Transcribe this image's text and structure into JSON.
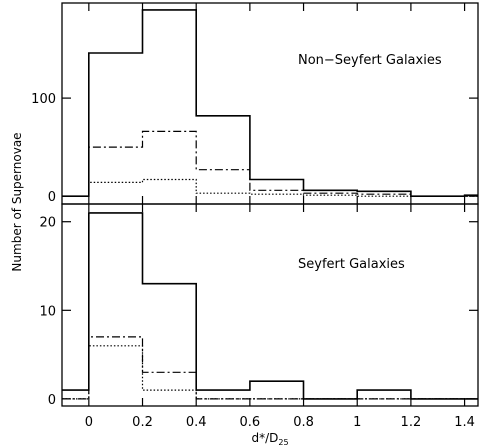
{
  "chart_data": [
    {
      "type": "step",
      "panel": "top",
      "annotation": "Non−Seyfert Galaxies",
      "ylabel": "Number of Supernovae",
      "xlabel": "d*/D25",
      "xlim": [
        -0.1,
        1.45
      ],
      "ylim": [
        -8,
        197
      ],
      "x_ticks": [
        0,
        0.2,
        0.4,
        0.6,
        0.8,
        1,
        1.2,
        1.4
      ],
      "x_tick_labels": [
        "0",
        "0.2",
        "0.4",
        "0.6",
        "0.8",
        "1",
        "1.2",
        "1.4"
      ],
      "y_ticks": [
        0,
        100
      ],
      "y_tick_labels": [
        "0",
        "100"
      ],
      "bin_edges": [
        -0.1,
        0,
        0.2,
        0.4,
        0.6,
        0.8,
        1.0,
        1.2,
        1.4,
        1.45
      ],
      "series": [
        {
          "style": "solid",
          "values": [
            0,
            146,
            190,
            82,
            17,
            6,
            5,
            0,
            1
          ]
        },
        {
          "style": "dashdot",
          "values": [
            0,
            50,
            66,
            27,
            6,
            3,
            2,
            0,
            0
          ]
        },
        {
          "style": "dotted",
          "values": [
            0,
            14,
            17,
            3,
            2,
            1,
            0,
            0,
            0
          ]
        }
      ]
    },
    {
      "type": "step",
      "panel": "bottom",
      "annotation": "Seyfert Galaxies",
      "xlim": [
        -0.1,
        1.45
      ],
      "ylim": [
        -0.8,
        22
      ],
      "y_ticks": [
        0,
        10,
        20
      ],
      "y_tick_labels": [
        "0",
        "10",
        "20"
      ],
      "bin_edges": [
        -0.1,
        0,
        0.2,
        0.4,
        0.6,
        0.8,
        1.0,
        1.2,
        1.4,
        1.45
      ],
      "series": [
        {
          "style": "solid",
          "values": [
            1,
            21,
            13,
            1,
            2,
            0,
            1,
            0,
            0
          ]
        },
        {
          "style": "dashdot",
          "values": [
            0,
            7,
            3,
            0,
            0,
            0,
            0,
            0,
            0
          ]
        },
        {
          "style": "dotted",
          "values": [
            0,
            6,
            1,
            0,
            0,
            0,
            0,
            0,
            0
          ]
        }
      ]
    }
  ],
  "labels": {
    "ylabel": "Number of Supernovae",
    "xlabel_main": "d*/D",
    "xlabel_sub": "25"
  }
}
